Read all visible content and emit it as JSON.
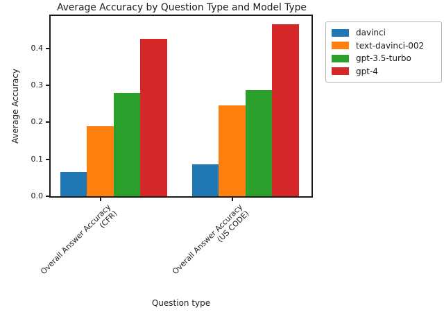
{
  "chart_data": {
    "type": "bar",
    "title": "Average Accuracy by Question Type and Model Type",
    "xlabel": "Question type",
    "ylabel": "Average Accuracy",
    "categories": [
      "Overall Answer Accuracy\n(CFR)",
      "Overall Answer Accuracy\n(US CODE)"
    ],
    "series": [
      {
        "name": "davinci",
        "color": "#1f77b4",
        "values": [
          0.065,
          0.087
        ]
      },
      {
        "name": "text-davinci-002",
        "color": "#ff7f0e",
        "values": [
          0.19,
          0.245
        ]
      },
      {
        "name": "gpt-3.5-turbo",
        "color": "#2ca02c",
        "values": [
          0.28,
          0.287
        ]
      },
      {
        "name": "gpt-4",
        "color": "#d62728",
        "values": [
          0.425,
          0.465
        ]
      }
    ],
    "ylim": [
      0,
      0.4878
    ],
    "yticks": [
      "0.0",
      "0.1",
      "0.2",
      "0.3",
      "0.4"
    ],
    "grid": false,
    "legend_position": "upper-right-outside",
    "bar_orientation": "vertical"
  }
}
